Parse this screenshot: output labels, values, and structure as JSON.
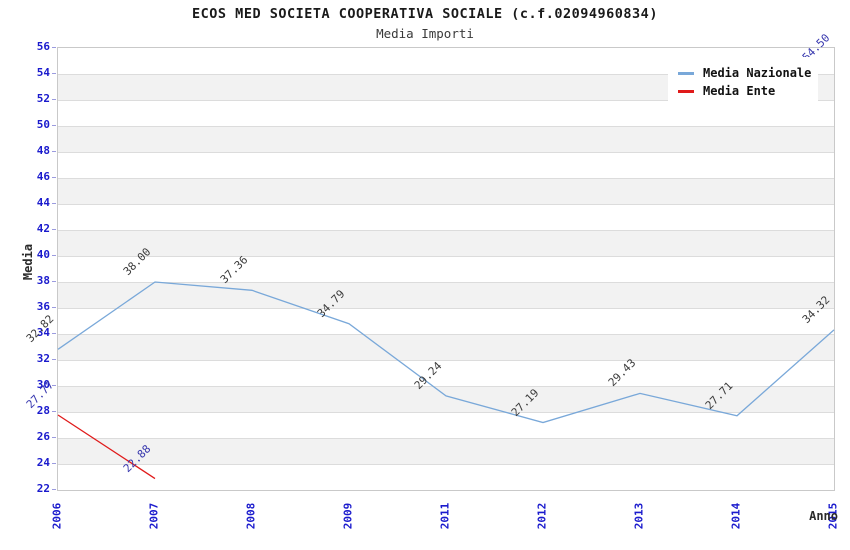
{
  "title": "ECOS MED SOCIETA COOPERATIVA SOCIALE (c.f.02094960834)",
  "subtitle": "Media Importi",
  "chart_data": {
    "type": "line",
    "categories": [
      "2006",
      "2007",
      "2008",
      "2009",
      "2011",
      "2012",
      "2013",
      "2014",
      "2015"
    ],
    "series": [
      {
        "name": "Media Nazionale",
        "color": "#79a8d9",
        "label_color": "#3c3c3c",
        "values": [
          32.82,
          38.0,
          37.36,
          34.79,
          29.24,
          27.19,
          29.43,
          27.71,
          34.32
        ],
        "labels": [
          "32.82",
          "38.00",
          "37.36",
          "34.79",
          "29.24",
          "27.19",
          "29.43",
          "27.71",
          "34.32"
        ]
      },
      {
        "name": "Media Ente",
        "color": "#e01a1a",
        "label_color": "#3737ae",
        "values": [
          27.77,
          22.88,
          null,
          null,
          null,
          null,
          null,
          null,
          54.5
        ],
        "labels": [
          "27.77",
          "22.88",
          null,
          null,
          null,
          null,
          null,
          null,
          "54.50"
        ]
      }
    ],
    "xlabel": "Anno",
    "ylabel": "Media",
    "ylim": [
      22,
      56
    ],
    "ytick_step": 2,
    "grid": true,
    "band_colors": [
      "#ffffff",
      "#f2f2f2"
    ],
    "gridline_color": "#dcdcdc",
    "axis_tick_color": "#1a1acd",
    "legend_position": "top-right"
  }
}
